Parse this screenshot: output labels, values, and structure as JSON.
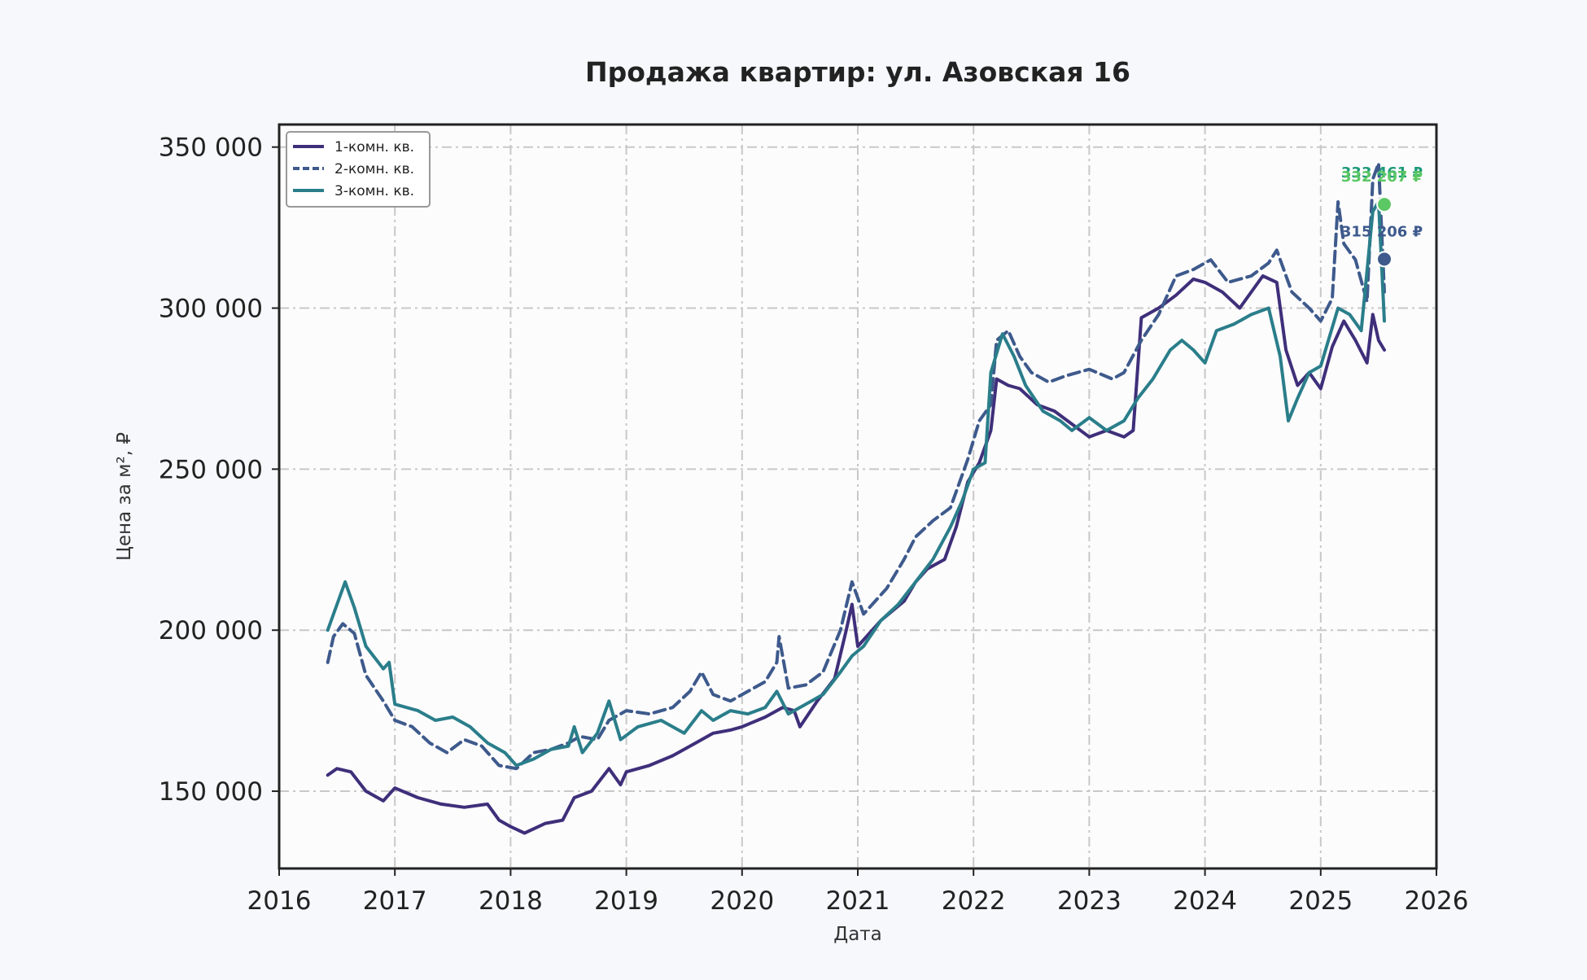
{
  "chart_data": {
    "type": "line",
    "title": "Продажа квартир: ул. Азовская 16",
    "xlabel": "Дата",
    "ylabel": "Цена за м², ₽",
    "xlim": [
      2016,
      2026
    ],
    "ylim": [
      126000,
      357000
    ],
    "x_ticks": [
      "2016",
      "2017",
      "2018",
      "2019",
      "2020",
      "2021",
      "2022",
      "2023",
      "2024",
      "2025",
      "2026"
    ],
    "y_ticks": [
      {
        "value": 150000,
        "label": "150 000"
      },
      {
        "value": 200000,
        "label": "200 000"
      },
      {
        "value": 250000,
        "label": "250 000"
      },
      {
        "value": 300000,
        "label": "300 000"
      },
      {
        "value": 350000,
        "label": "350 000"
      }
    ],
    "grid": true,
    "legend_position": "top-left",
    "series": [
      {
        "name": "1-комн. кв.",
        "color": "#3f2f7a",
        "dash": "solid",
        "points": [
          [
            2016.42,
            155000
          ],
          [
            2016.5,
            157000
          ],
          [
            2016.62,
            156000
          ],
          [
            2016.75,
            150000
          ],
          [
            2016.9,
            147000
          ],
          [
            2017.0,
            151000
          ],
          [
            2017.2,
            148000
          ],
          [
            2017.4,
            146000
          ],
          [
            2017.6,
            145000
          ],
          [
            2017.8,
            146000
          ],
          [
            2017.9,
            141000
          ],
          [
            2018.0,
            139000
          ],
          [
            2018.12,
            137000
          ],
          [
            2018.3,
            140000
          ],
          [
            2018.45,
            141000
          ],
          [
            2018.55,
            148000
          ],
          [
            2018.7,
            150000
          ],
          [
            2018.85,
            157000
          ],
          [
            2018.95,
            152000
          ],
          [
            2019.0,
            156000
          ],
          [
            2019.2,
            158000
          ],
          [
            2019.4,
            161000
          ],
          [
            2019.6,
            165000
          ],
          [
            2019.75,
            168000
          ],
          [
            2019.9,
            169000
          ],
          [
            2020.0,
            170000
          ],
          [
            2020.2,
            173000
          ],
          [
            2020.35,
            176000
          ],
          [
            2020.45,
            175000
          ],
          [
            2020.5,
            170000
          ],
          [
            2020.65,
            178000
          ],
          [
            2020.8,
            185000
          ],
          [
            2020.9,
            200000
          ],
          [
            2020.95,
            208000
          ],
          [
            2021.0,
            195000
          ],
          [
            2021.2,
            203000
          ],
          [
            2021.4,
            209000
          ],
          [
            2021.5,
            215000
          ],
          [
            2021.6,
            219000
          ],
          [
            2021.75,
            222000
          ],
          [
            2021.85,
            232000
          ],
          [
            2021.95,
            246000
          ],
          [
            2022.05,
            252000
          ],
          [
            2022.15,
            262000
          ],
          [
            2022.2,
            278000
          ],
          [
            2022.3,
            276000
          ],
          [
            2022.4,
            275000
          ],
          [
            2022.55,
            270000
          ],
          [
            2022.7,
            268000
          ],
          [
            2022.85,
            264000
          ],
          [
            2023.0,
            260000
          ],
          [
            2023.15,
            262000
          ],
          [
            2023.3,
            260000
          ],
          [
            2023.38,
            262000
          ],
          [
            2023.45,
            297000
          ],
          [
            2023.6,
            300000
          ],
          [
            2023.75,
            304000
          ],
          [
            2023.9,
            309000
          ],
          [
            2024.0,
            308000
          ],
          [
            2024.15,
            305000
          ],
          [
            2024.3,
            300000
          ],
          [
            2024.5,
            310000
          ],
          [
            2024.62,
            308000
          ],
          [
            2024.7,
            287000
          ],
          [
            2024.8,
            276000
          ],
          [
            2024.9,
            280000
          ],
          [
            2025.0,
            275000
          ],
          [
            2025.1,
            288000
          ],
          [
            2025.2,
            296000
          ],
          [
            2025.3,
            290000
          ],
          [
            2025.4,
            283000
          ],
          [
            2025.45,
            298000
          ],
          [
            2025.5,
            290000
          ],
          [
            2025.55,
            287000
          ]
        ]
      },
      {
        "name": "2-комн. кв.",
        "color": "#3e5a8c",
        "dash": "dashed",
        "points": [
          [
            2016.42,
            190000
          ],
          [
            2016.47,
            198000
          ],
          [
            2016.55,
            202000
          ],
          [
            2016.65,
            199000
          ],
          [
            2016.75,
            186000
          ],
          [
            2016.9,
            178000
          ],
          [
            2017.0,
            172000
          ],
          [
            2017.15,
            170000
          ],
          [
            2017.3,
            165000
          ],
          [
            2017.45,
            162000
          ],
          [
            2017.6,
            166000
          ],
          [
            2017.75,
            164000
          ],
          [
            2017.9,
            158000
          ],
          [
            2018.05,
            157000
          ],
          [
            2018.2,
            162000
          ],
          [
            2018.35,
            163000
          ],
          [
            2018.5,
            165000
          ],
          [
            2018.6,
            167000
          ],
          [
            2018.75,
            166000
          ],
          [
            2018.85,
            172000
          ],
          [
            2019.0,
            175000
          ],
          [
            2019.2,
            174000
          ],
          [
            2019.4,
            176000
          ],
          [
            2019.55,
            181000
          ],
          [
            2019.65,
            187000
          ],
          [
            2019.75,
            180000
          ],
          [
            2019.9,
            178000
          ],
          [
            2020.05,
            181000
          ],
          [
            2020.2,
            184000
          ],
          [
            2020.3,
            190000
          ],
          [
            2020.32,
            198000
          ],
          [
            2020.4,
            182000
          ],
          [
            2020.55,
            183000
          ],
          [
            2020.7,
            187000
          ],
          [
            2020.85,
            200000
          ],
          [
            2020.95,
            215000
          ],
          [
            2021.05,
            205000
          ],
          [
            2021.25,
            213000
          ],
          [
            2021.4,
            222000
          ],
          [
            2021.5,
            229000
          ],
          [
            2021.65,
            234000
          ],
          [
            2021.8,
            238000
          ],
          [
            2021.95,
            253000
          ],
          [
            2022.05,
            265000
          ],
          [
            2022.15,
            270000
          ],
          [
            2022.2,
            290000
          ],
          [
            2022.3,
            293000
          ],
          [
            2022.4,
            285000
          ],
          [
            2022.5,
            280000
          ],
          [
            2022.65,
            277000
          ],
          [
            2022.8,
            279000
          ],
          [
            2023.0,
            281000
          ],
          [
            2023.2,
            278000
          ],
          [
            2023.3,
            280000
          ],
          [
            2023.45,
            290000
          ],
          [
            2023.6,
            298000
          ],
          [
            2023.75,
            310000
          ],
          [
            2023.9,
            312000
          ],
          [
            2024.05,
            315000
          ],
          [
            2024.2,
            308000
          ],
          [
            2024.4,
            310000
          ],
          [
            2024.55,
            314000
          ],
          [
            2024.62,
            318000
          ],
          [
            2024.75,
            305000
          ],
          [
            2024.9,
            300000
          ],
          [
            2025.0,
            296000
          ],
          [
            2025.1,
            303000
          ],
          [
            2025.15,
            333000
          ],
          [
            2025.2,
            320000
          ],
          [
            2025.3,
            315000
          ],
          [
            2025.4,
            302000
          ],
          [
            2025.45,
            340000
          ],
          [
            2025.5,
            345000
          ],
          [
            2025.55,
            305000
          ]
        ]
      },
      {
        "name": "3-комн. кв.",
        "color": "#2a7e8a",
        "dash": "solid",
        "points": [
          [
            2016.42,
            200000
          ],
          [
            2016.5,
            208000
          ],
          [
            2016.57,
            215000
          ],
          [
            2016.65,
            207000
          ],
          [
            2016.75,
            195000
          ],
          [
            2016.9,
            188000
          ],
          [
            2016.95,
            190000
          ],
          [
            2017.0,
            177000
          ],
          [
            2017.2,
            175000
          ],
          [
            2017.35,
            172000
          ],
          [
            2017.5,
            173000
          ],
          [
            2017.65,
            170000
          ],
          [
            2017.8,
            165000
          ],
          [
            2017.95,
            162000
          ],
          [
            2018.05,
            158000
          ],
          [
            2018.2,
            160000
          ],
          [
            2018.35,
            163000
          ],
          [
            2018.5,
            164000
          ],
          [
            2018.55,
            170000
          ],
          [
            2018.62,
            162000
          ],
          [
            2018.75,
            168000
          ],
          [
            2018.85,
            178000
          ],
          [
            2018.95,
            166000
          ],
          [
            2019.1,
            170000
          ],
          [
            2019.3,
            172000
          ],
          [
            2019.5,
            168000
          ],
          [
            2019.65,
            175000
          ],
          [
            2019.75,
            172000
          ],
          [
            2019.9,
            175000
          ],
          [
            2020.05,
            174000
          ],
          [
            2020.2,
            176000
          ],
          [
            2020.3,
            181000
          ],
          [
            2020.4,
            174000
          ],
          [
            2020.55,
            177000
          ],
          [
            2020.7,
            180000
          ],
          [
            2020.85,
            187000
          ],
          [
            2020.95,
            192000
          ],
          [
            2021.05,
            195000
          ],
          [
            2021.2,
            203000
          ],
          [
            2021.35,
            208000
          ],
          [
            2021.5,
            215000
          ],
          [
            2021.65,
            222000
          ],
          [
            2021.8,
            232000
          ],
          [
            2021.9,
            240000
          ],
          [
            2022.0,
            250000
          ],
          [
            2022.1,
            252000
          ],
          [
            2022.15,
            280000
          ],
          [
            2022.25,
            292000
          ],
          [
            2022.35,
            285000
          ],
          [
            2022.45,
            276000
          ],
          [
            2022.6,
            268000
          ],
          [
            2022.75,
            265000
          ],
          [
            2022.85,
            262000
          ],
          [
            2023.0,
            266000
          ],
          [
            2023.15,
            262000
          ],
          [
            2023.3,
            265000
          ],
          [
            2023.42,
            272000
          ],
          [
            2023.55,
            278000
          ],
          [
            2023.7,
            287000
          ],
          [
            2023.8,
            290000
          ],
          [
            2023.9,
            287000
          ],
          [
            2024.0,
            283000
          ],
          [
            2024.1,
            293000
          ],
          [
            2024.25,
            295000
          ],
          [
            2024.4,
            298000
          ],
          [
            2024.55,
            300000
          ],
          [
            2024.65,
            285000
          ],
          [
            2024.72,
            265000
          ],
          [
            2024.8,
            272000
          ],
          [
            2024.9,
            280000
          ],
          [
            2025.0,
            282000
          ],
          [
            2025.15,
            300000
          ],
          [
            2025.25,
            298000
          ],
          [
            2025.35,
            293000
          ],
          [
            2025.45,
            330000
          ],
          [
            2025.5,
            333000
          ],
          [
            2025.55,
            296000
          ]
        ]
      }
    ],
    "annotations": [
      {
        "label": "333 461 ₽",
        "x": 2025.55,
        "y": 333461,
        "color": "#1e9a7a"
      },
      {
        "label": "332 207 ₽",
        "x": 2025.55,
        "y": 332207,
        "color": "#5cc863"
      },
      {
        "label": "315 206 ₽",
        "x": 2025.55,
        "y": 315206,
        "color": "#3e5a8c"
      }
    ],
    "end_markers": [
      {
        "x": 2025.55,
        "y": 332207,
        "color": "#5cc863"
      },
      {
        "x": 2025.55,
        "y": 315206,
        "color": "#3e5a8c"
      }
    ]
  }
}
